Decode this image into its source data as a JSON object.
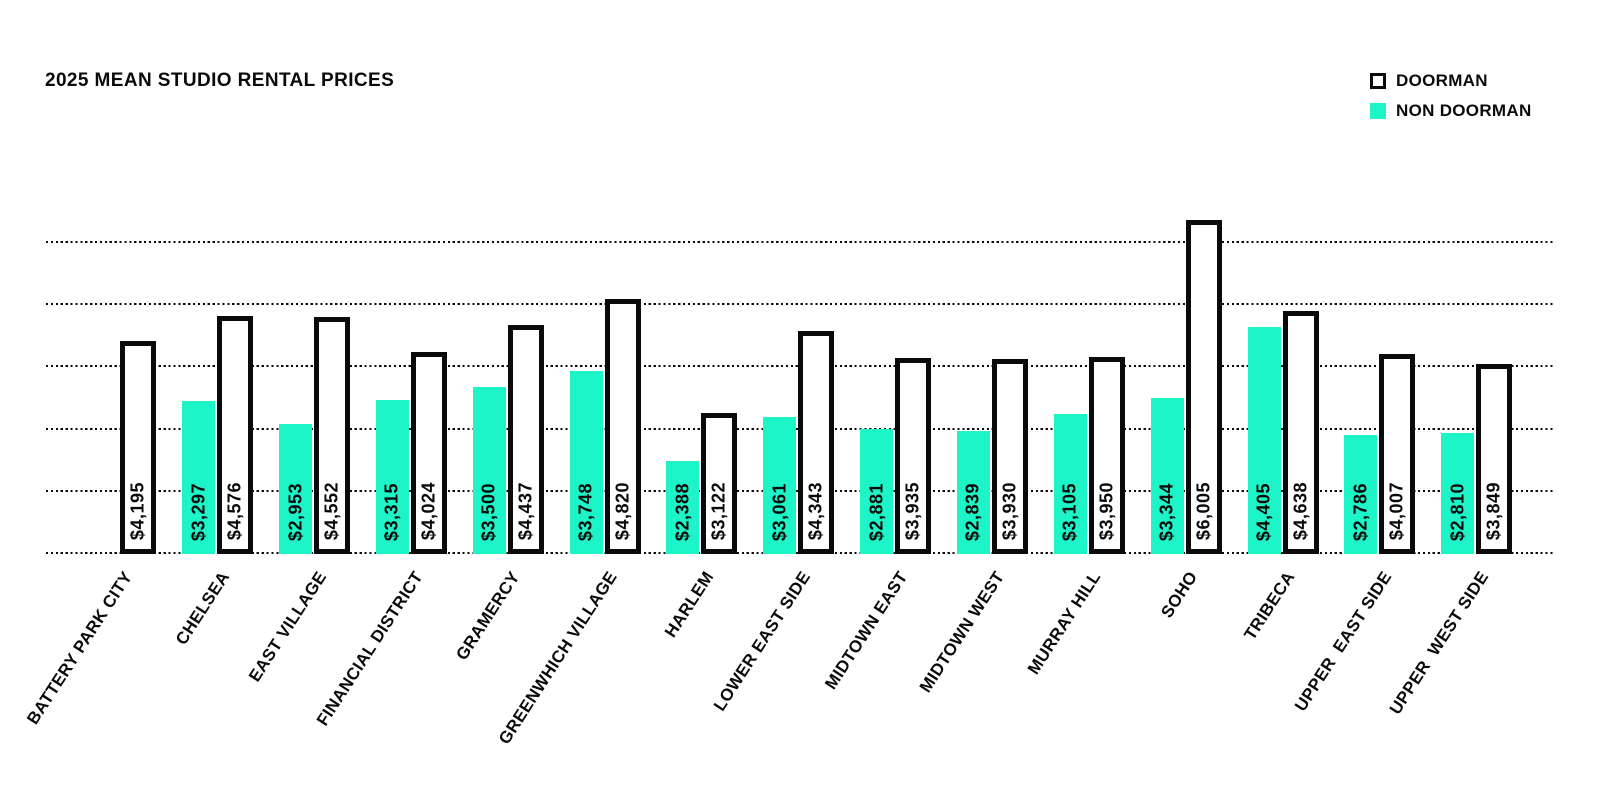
{
  "title": "2025 MEAN STUDIO RENTAL PRICES",
  "colors": {
    "accent": "#1df5c8",
    "ink": "#0a0a0a",
    "background": "#ffffff"
  },
  "legend": {
    "items": [
      {
        "label": "DOORMAN",
        "swatch": "outline"
      },
      {
        "label": "NON DOORMAN",
        "swatch": "fill"
      }
    ]
  },
  "chart_data": {
    "type": "bar",
    "title": "2025 MEAN STUDIO RENTAL PRICES",
    "categories": [
      "BATTERY PARK CITY",
      "CHELSEA",
      "EAST VILLAGE",
      "FINANCIAL DISTRICT",
      "GRAMERCY",
      "GREENWHICH VILLAGE",
      "HARLEM",
      "LOWER EAST SIDE",
      "MIDTOWN EAST",
      "MIDTOWN WEST",
      "MURRAY HILL",
      "SOHO",
      "TRIBECA",
      "UPPER  EAST SIDE",
      "UPPER  WEST SIDE"
    ],
    "series": [
      {
        "name": "DOORMAN",
        "style": "outline",
        "values": [
          4195,
          4576,
          4552,
          4024,
          4437,
          4820,
          3122,
          4343,
          3935,
          3930,
          3950,
          6005,
          4638,
          4007,
          3849
        ],
        "labels": [
          "$4,195",
          "$4,576",
          "$4,552",
          "$4,024",
          "$4,437",
          "$4,820",
          "$3,122",
          "$4,343",
          "$3,935",
          "$3,930",
          "$3,950",
          "$6,005",
          "$4,638",
          "$4,007",
          "$3,849"
        ]
      },
      {
        "name": "NON DOORMAN",
        "style": "fill",
        "values": [
          null,
          3297,
          2953,
          3315,
          3500,
          3748,
          2388,
          3061,
          2881,
          2839,
          3105,
          3344,
          4405,
          2786,
          2810
        ],
        "labels": [
          null,
          "$3,297",
          "$2,953",
          "$3,315",
          "$3,500",
          "$3,748",
          "$2,388",
          "$3,061",
          "$2,881",
          "$2,839",
          "$3,105",
          "$3,344",
          "$4,405",
          "$2,786",
          "$2,810"
        ]
      }
    ],
    "ylim": [
      1000,
      6100
    ],
    "grid": "dotted-horizontal",
    "gridline_count": 6,
    "legend_position": "top-right",
    "value_labels": "inside-bar-rotated-90",
    "category_labels": "rotated-diagonal"
  }
}
